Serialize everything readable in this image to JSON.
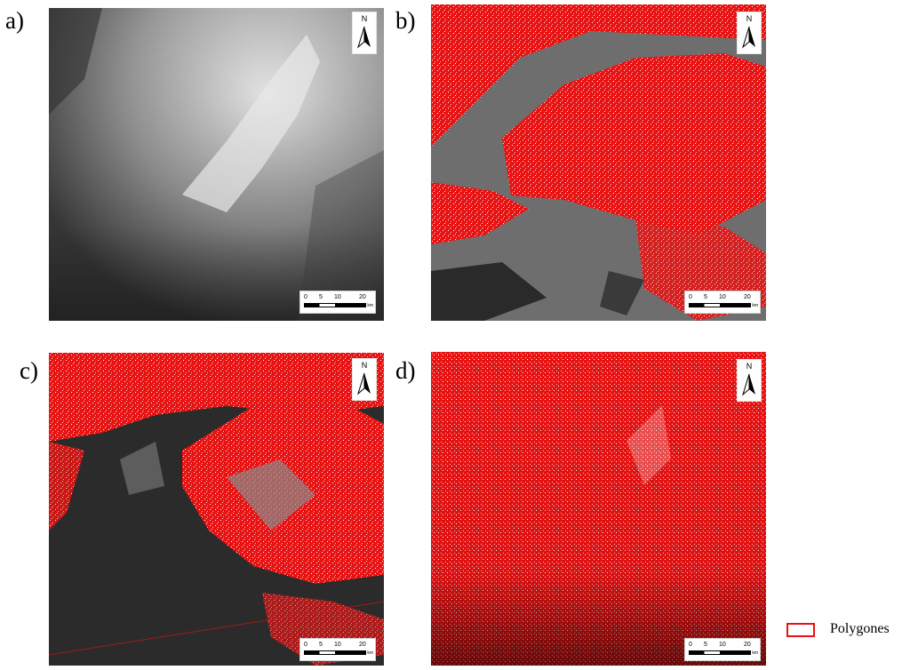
{
  "panels": [
    {
      "label": "a)",
      "content": "elevation",
      "north": "N",
      "scale_ticks": [
        "0",
        "5",
        "10",
        "20"
      ],
      "scale_unit": "km"
    },
    {
      "label": "b)",
      "content": "polygons-overlay",
      "north": "N",
      "scale_ticks": [
        "0",
        "5",
        "10",
        "20"
      ],
      "scale_unit": "km"
    },
    {
      "label": "c)",
      "content": "polygons-overlay",
      "north": "N",
      "scale_ticks": [
        "0",
        "5",
        "10",
        "20"
      ],
      "scale_unit": "km"
    },
    {
      "label": "d)",
      "content": "polygons-overlay",
      "north": "N",
      "scale_ticks": [
        "0",
        "5",
        "10",
        "20"
      ],
      "scale_unit": "km"
    }
  ],
  "legend": {
    "label": "Polygones",
    "color": "#e81313"
  },
  "colors": {
    "polygon_red": "#e81313",
    "dark_gray": "#2b2b2b",
    "mid_gray": "#6e6e6e"
  },
  "icons": [
    "north-arrow-icon"
  ]
}
